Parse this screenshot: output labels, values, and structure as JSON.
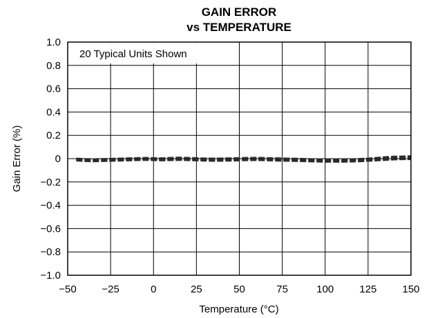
{
  "chart_data": {
    "type": "line",
    "title_line1": "GAIN ERROR",
    "title_line2": "vs TEMPERATURE",
    "xlabel": "Temperature (°C)",
    "ylabel": "Gain Error (%)",
    "xlim": [
      -50,
      150
    ],
    "ylim": [
      -1.0,
      1.0
    ],
    "x_ticks": [
      -50,
      -25,
      0,
      25,
      50,
      75,
      100,
      125,
      150
    ],
    "x_tick_labels": [
      "−50",
      "−25",
      "0",
      "25",
      "50",
      "75",
      "100",
      "125",
      "150"
    ],
    "y_ticks": [
      1.0,
      0.8,
      0.6,
      0.4,
      0.2,
      0,
      -0.2,
      -0.4,
      -0.6,
      -0.8,
      -1.0
    ],
    "y_tick_labels": [
      "1.0",
      "0.8",
      "0.6",
      "0.4",
      "0.2",
      "0",
      "−0.2",
      "−0.4",
      "−0.6",
      "−0.8",
      "−1.0"
    ],
    "grid": true,
    "annotation": "20 Typical Units Shown",
    "series_style": "dashed",
    "x": [
      -45,
      -40,
      -35,
      -30,
      -25,
      -20,
      -15,
      -10,
      -5,
      0,
      5,
      10,
      15,
      20,
      25,
      30,
      35,
      40,
      45,
      50,
      55,
      60,
      65,
      70,
      75,
      80,
      85,
      90,
      95,
      100,
      105,
      110,
      115,
      120,
      125,
      130,
      135,
      140,
      145,
      150
    ],
    "series": [
      {
        "values": [
          -0.005,
          -0.008,
          -0.01,
          -0.008,
          -0.006,
          -0.004,
          -0.002,
          0.0,
          0.002,
          0.0,
          -0.002,
          0.002,
          0.004,
          0.002,
          0.0,
          -0.003,
          -0.004,
          -0.003,
          -0.002,
          0.0,
          0.002,
          0.003,
          0.001,
          -0.001,
          -0.003,
          -0.004,
          -0.006,
          -0.008,
          -0.01,
          -0.012,
          -0.01,
          -0.012,
          -0.01,
          -0.008,
          -0.005,
          0.0,
          0.005,
          0.008,
          0.01,
          0.01
        ]
      },
      {
        "values": [
          -0.01,
          -0.014,
          -0.016,
          -0.014,
          -0.012,
          -0.01,
          -0.008,
          -0.006,
          -0.004,
          -0.006,
          -0.008,
          -0.006,
          -0.004,
          -0.006,
          -0.008,
          -0.01,
          -0.012,
          -0.011,
          -0.01,
          -0.008,
          -0.006,
          -0.005,
          -0.007,
          -0.009,
          -0.011,
          -0.012,
          -0.014,
          -0.016,
          -0.018,
          -0.02,
          -0.019,
          -0.02,
          -0.018,
          -0.015,
          -0.012,
          -0.008,
          -0.004,
          0.0,
          0.002,
          0.003
        ]
      },
      {
        "values": [
          -0.015,
          -0.02,
          -0.022,
          -0.02,
          -0.018,
          -0.016,
          -0.014,
          -0.012,
          -0.01,
          -0.012,
          -0.014,
          -0.012,
          -0.01,
          -0.012,
          -0.014,
          -0.016,
          -0.018,
          -0.017,
          -0.016,
          -0.014,
          -0.012,
          -0.011,
          -0.013,
          -0.015,
          -0.017,
          -0.018,
          -0.02,
          -0.022,
          -0.024,
          -0.026,
          -0.025,
          -0.026,
          -0.024,
          -0.022,
          -0.018,
          -0.014,
          -0.01,
          -0.006,
          -0.004,
          -0.003
        ]
      },
      {
        "values": [
          0.0,
          -0.004,
          -0.006,
          -0.004,
          -0.002,
          0.0,
          0.002,
          0.004,
          0.006,
          0.004,
          0.002,
          0.006,
          0.008,
          0.006,
          0.004,
          0.001,
          0.0,
          0.001,
          0.002,
          0.004,
          0.006,
          0.007,
          0.005,
          0.003,
          0.001,
          0.0,
          -0.002,
          -0.004,
          -0.006,
          -0.008,
          -0.006,
          -0.008,
          -0.006,
          -0.003,
          0.0,
          0.006,
          0.012,
          0.016,
          0.018,
          0.02
        ]
      }
    ]
  }
}
